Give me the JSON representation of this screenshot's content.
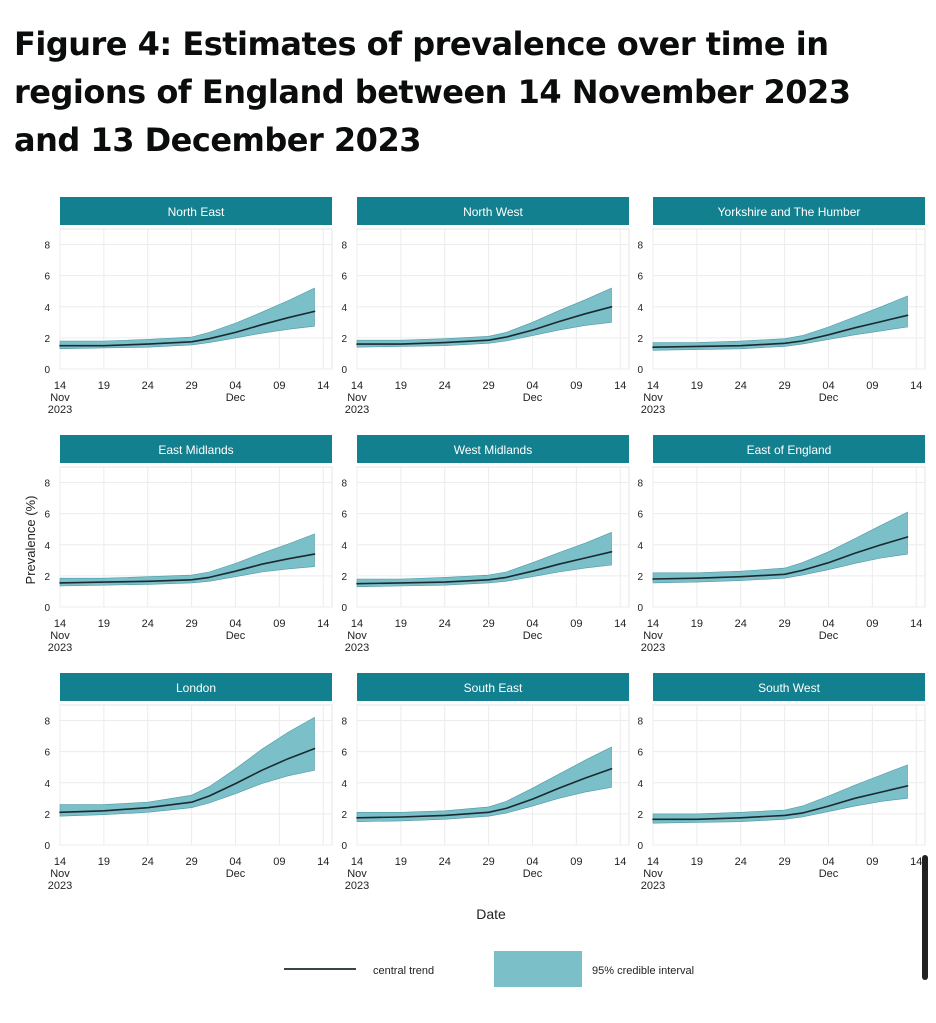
{
  "figure": {
    "title": "Figure 4: Estimates of prevalence over time in regions of England between 14 November 2023 and 13 December 2023"
  },
  "chart_data": {
    "type": "line",
    "ylabel": "Prevalence (%)",
    "xlabel": "Date",
    "ylim": [
      0,
      9
    ],
    "yticks": [
      0,
      2,
      4,
      6,
      8
    ],
    "x_days_range": [
      0,
      31
    ],
    "xticks": [
      {
        "day": 0,
        "lines": [
          "14",
          "Nov",
          "2023"
        ]
      },
      {
        "day": 5,
        "lines": [
          "19"
        ]
      },
      {
        "day": 10,
        "lines": [
          "24"
        ]
      },
      {
        "day": 15,
        "lines": [
          "29"
        ]
      },
      {
        "day": 20,
        "lines": [
          "04",
          "Dec"
        ]
      },
      {
        "day": 25,
        "lines": [
          "09"
        ]
      },
      {
        "day": 30,
        "lines": [
          "14"
        ]
      }
    ],
    "x_days": [
      0,
      5,
      10,
      15,
      17,
      20,
      23,
      26,
      29
    ],
    "legend": {
      "line_label": "central trend",
      "band_label": "95% credible interval",
      "placement": "bottom"
    },
    "colors": {
      "band": "#7bbfc9",
      "band_edge": "#4f9aa6",
      "line": "#1b2a2e",
      "strip": "#13808f",
      "strip_text": "#ffffff",
      "grid": "#ececec",
      "axis_text": "#222222"
    },
    "panels": [
      {
        "region": "North East",
        "central": [
          1.5,
          1.5,
          1.6,
          1.75,
          1.95,
          2.35,
          2.85,
          3.3,
          3.7
        ],
        "lower": [
          1.3,
          1.35,
          1.4,
          1.55,
          1.7,
          2.0,
          2.3,
          2.55,
          2.75
        ],
        "upper": [
          1.8,
          1.8,
          1.9,
          2.05,
          2.35,
          2.95,
          3.65,
          4.4,
          5.2
        ]
      },
      {
        "region": "North West",
        "central": [
          1.6,
          1.6,
          1.7,
          1.85,
          2.05,
          2.5,
          3.05,
          3.55,
          4.0
        ],
        "lower": [
          1.4,
          1.45,
          1.5,
          1.65,
          1.8,
          2.15,
          2.5,
          2.8,
          3.0
        ],
        "upper": [
          1.85,
          1.85,
          1.95,
          2.1,
          2.35,
          3.0,
          3.75,
          4.45,
          5.2
        ]
      },
      {
        "region": "Yorkshire and The Humber",
        "central": [
          1.4,
          1.45,
          1.5,
          1.65,
          1.8,
          2.2,
          2.65,
          3.05,
          3.45
        ],
        "lower": [
          1.2,
          1.25,
          1.3,
          1.45,
          1.6,
          1.9,
          2.2,
          2.45,
          2.7
        ],
        "upper": [
          1.7,
          1.7,
          1.8,
          1.95,
          2.15,
          2.7,
          3.35,
          4.0,
          4.7
        ]
      },
      {
        "region": "East Midlands",
        "central": [
          1.55,
          1.6,
          1.65,
          1.75,
          1.9,
          2.3,
          2.75,
          3.1,
          3.4
        ],
        "lower": [
          1.35,
          1.4,
          1.45,
          1.55,
          1.65,
          1.95,
          2.25,
          2.45,
          2.6
        ],
        "upper": [
          1.85,
          1.85,
          1.95,
          2.05,
          2.25,
          2.8,
          3.45,
          4.05,
          4.7
        ]
      },
      {
        "region": "West Midlands",
        "central": [
          1.5,
          1.55,
          1.6,
          1.75,
          1.9,
          2.3,
          2.75,
          3.15,
          3.55
        ],
        "lower": [
          1.3,
          1.35,
          1.4,
          1.55,
          1.65,
          1.95,
          2.25,
          2.5,
          2.7
        ],
        "upper": [
          1.8,
          1.8,
          1.9,
          2.05,
          2.25,
          2.85,
          3.5,
          4.1,
          4.8
        ]
      },
      {
        "region": "East of England",
        "central": [
          1.8,
          1.85,
          1.95,
          2.1,
          2.35,
          2.85,
          3.45,
          4.0,
          4.5
        ],
        "lower": [
          1.55,
          1.6,
          1.7,
          1.85,
          2.05,
          2.4,
          2.8,
          3.15,
          3.4
        ],
        "upper": [
          2.2,
          2.2,
          2.3,
          2.5,
          2.85,
          3.55,
          4.4,
          5.25,
          6.1
        ]
      },
      {
        "region": "London",
        "central": [
          2.1,
          2.2,
          2.4,
          2.75,
          3.15,
          3.95,
          4.8,
          5.55,
          6.2
        ],
        "lower": [
          1.85,
          1.95,
          2.1,
          2.4,
          2.7,
          3.3,
          3.95,
          4.45,
          4.8
        ],
        "upper": [
          2.6,
          2.6,
          2.75,
          3.2,
          3.75,
          4.9,
          6.15,
          7.25,
          8.2
        ]
      },
      {
        "region": "South East",
        "central": [
          1.75,
          1.8,
          1.9,
          2.1,
          2.35,
          2.95,
          3.65,
          4.3,
          4.9
        ],
        "lower": [
          1.5,
          1.55,
          1.65,
          1.85,
          2.05,
          2.5,
          3.0,
          3.4,
          3.7
        ],
        "upper": [
          2.1,
          2.1,
          2.2,
          2.45,
          2.8,
          3.65,
          4.55,
          5.45,
          6.3
        ]
      },
      {
        "region": "South West",
        "central": [
          1.65,
          1.65,
          1.75,
          1.9,
          2.05,
          2.5,
          3.0,
          3.4,
          3.8
        ],
        "lower": [
          1.4,
          1.45,
          1.5,
          1.65,
          1.8,
          2.15,
          2.5,
          2.8,
          3.0
        ],
        "upper": [
          2.0,
          2.0,
          2.1,
          2.25,
          2.5,
          3.15,
          3.85,
          4.5,
          5.15
        ]
      }
    ]
  }
}
